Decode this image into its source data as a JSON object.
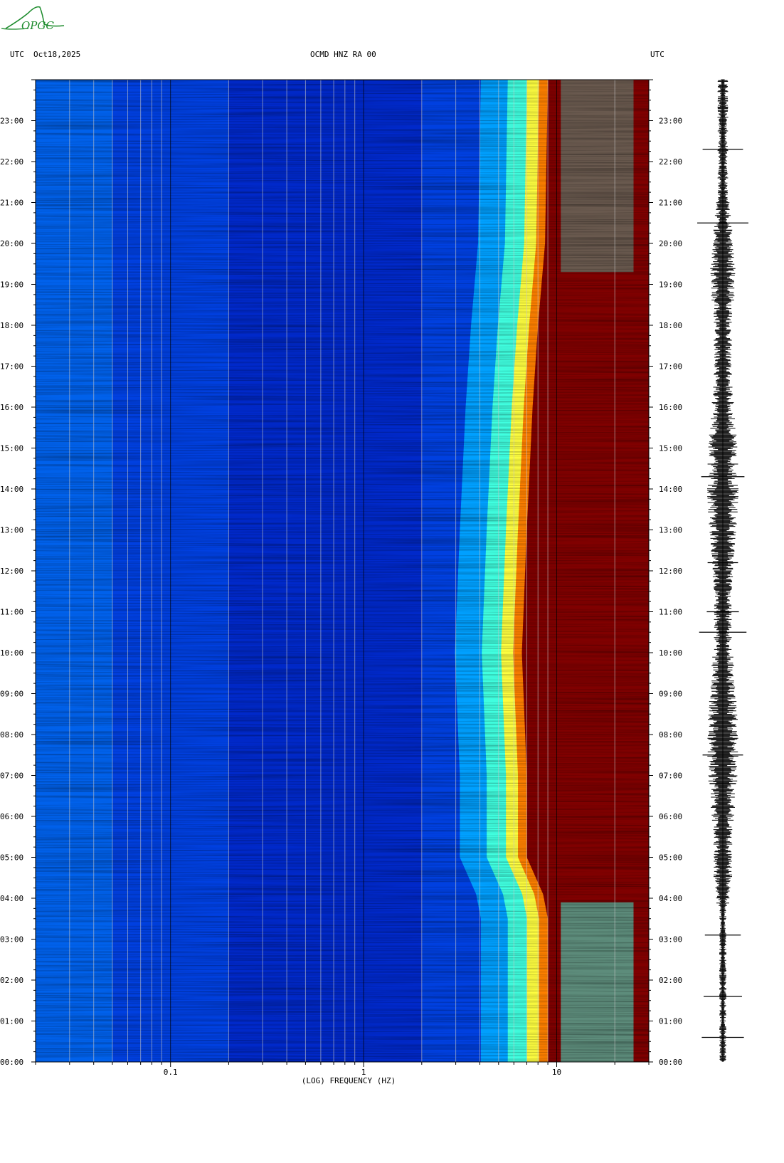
{
  "logo": {
    "text": "OPGC",
    "color": "#1a8a2a"
  },
  "header": {
    "left_tz": "UTC",
    "date": "Oct18,2025",
    "station": "OCMD HNZ RA 00",
    "right_tz": "UTC"
  },
  "chart_data": {
    "type": "heatmap",
    "title": "OCMD HNZ RA 00",
    "xlabel": "(LOG) FREQUENCY (HZ)",
    "x_scale": "log",
    "xlim": [
      0.02,
      30
    ],
    "x_ticks": [
      {
        "value": 0.1,
        "label": "0.1"
      },
      {
        "value": 1,
        "label": "1"
      },
      {
        "value": 10,
        "label": "10"
      }
    ],
    "ylim_hours": [
      0,
      24
    ],
    "y_ticks": [
      "00:00",
      "01:00",
      "02:00",
      "03:00",
      "04:00",
      "05:00",
      "06:00",
      "07:00",
      "08:00",
      "09:00",
      "10:00",
      "11:00",
      "12:00",
      "13:00",
      "14:00",
      "15:00",
      "16:00",
      "17:00",
      "18:00",
      "19:00",
      "20:00",
      "21:00",
      "22:00",
      "23:00"
    ],
    "colormap": [
      "#0000a0",
      "#0040e0",
      "#00a0ff",
      "#40ffe0",
      "#ffff40",
      "#ff8000",
      "#e00000",
      "#800000"
    ],
    "saturation_edge_hz": [
      {
        "hour": 0,
        "hz": 9
      },
      {
        "hour": 3.5,
        "hz": 9
      },
      {
        "hour": 4.1,
        "hz": 8.5
      },
      {
        "hour": 5,
        "hz": 7
      },
      {
        "hour": 7,
        "hz": 7
      },
      {
        "hour": 10,
        "hz": 6.6
      },
      {
        "hour": 13,
        "hz": 7
      },
      {
        "hour": 16,
        "hz": 7.5
      },
      {
        "hour": 18,
        "hz": 8
      },
      {
        "hour": 20,
        "hz": 8.7
      },
      {
        "hour": 24,
        "hz": 9
      }
    ]
  }
}
